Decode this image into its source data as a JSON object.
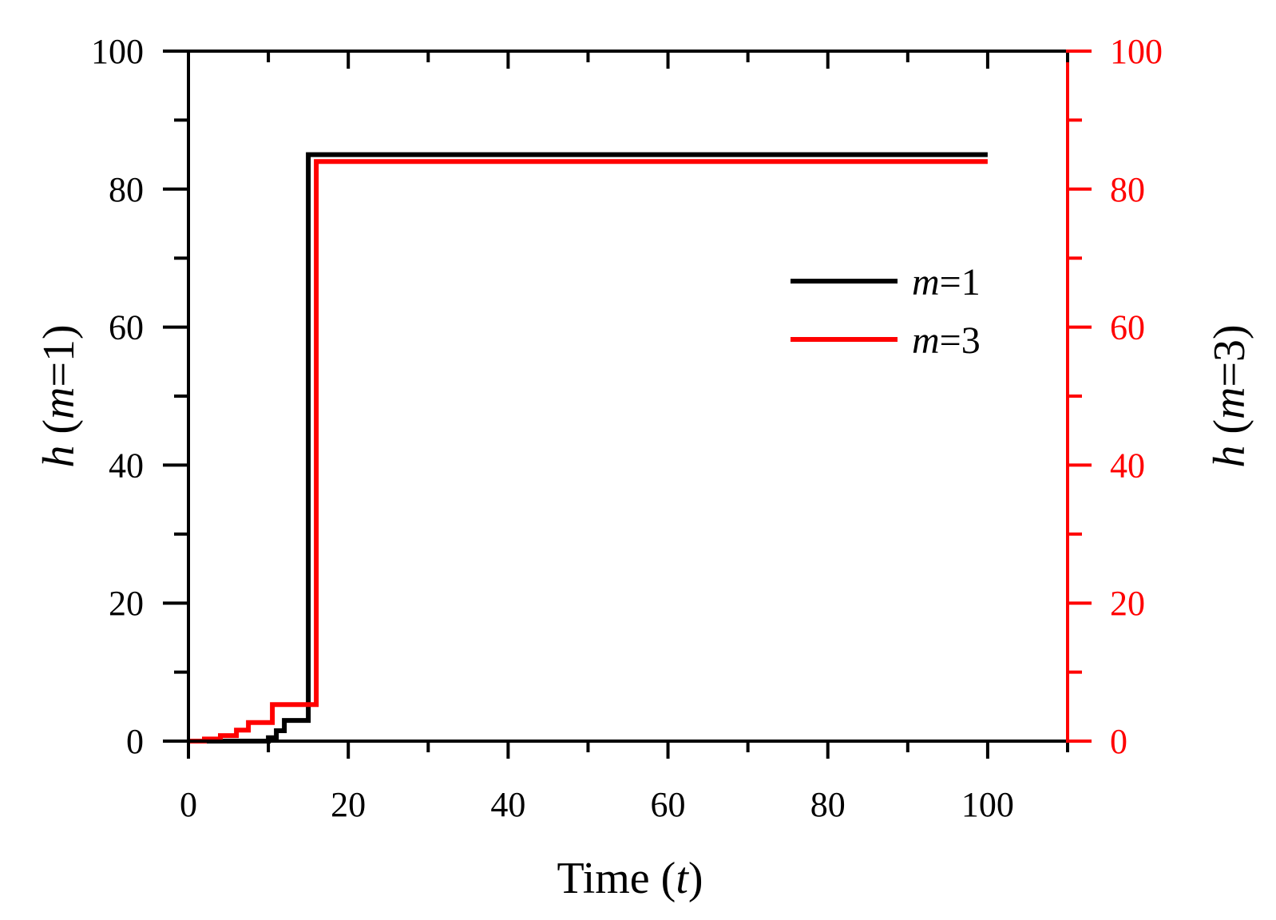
{
  "chart_data": {
    "type": "line",
    "step": true,
    "xlim": [
      0,
      110
    ],
    "ylim": [
      0,
      100
    ],
    "y2lim": [
      0,
      100
    ],
    "x_ticks": [
      "0",
      "20",
      "40",
      "60",
      "80",
      "100"
    ],
    "y_ticks": [
      "0",
      "20",
      "40",
      "60",
      "80",
      "100"
    ],
    "y2_ticks": [
      "0",
      "20",
      "40",
      "60",
      "80",
      "100"
    ],
    "xlabel": {
      "main": "Time (",
      "var": "t",
      "end": ")"
    },
    "ylabel": {
      "pre": "h",
      "mid": " (",
      "var": "m",
      "end": "=1)"
    },
    "y2label": {
      "pre": "h",
      "mid": " (",
      "var": "m",
      "end": "=3)"
    },
    "legend_position": "right-middle",
    "grid": false,
    "colors": {
      "axis": "#000000",
      "secondary_axis": "#ff0000"
    },
    "series": [
      {
        "name": "m=1",
        "legend_var": "m",
        "legend_rest": "=1",
        "axis": "left",
        "color": "#000000",
        "x": [
          0,
          8,
          10,
          10,
          11,
          11,
          12,
          12,
          15,
          15,
          100
        ],
        "y": [
          0,
          0,
          0,
          0.5,
          0.5,
          1.5,
          1.5,
          3,
          3,
          85,
          85
        ]
      },
      {
        "name": "m=3",
        "legend_var": "m",
        "legend_rest": "=3",
        "axis": "right",
        "color": "#ff0000",
        "x": [
          0,
          2,
          2,
          4,
          4,
          6,
          6,
          7.5,
          7.5,
          10.5,
          10.5,
          16,
          16,
          100
        ],
        "y": [
          0,
          0,
          0.3,
          0.3,
          0.8,
          0.8,
          1.6,
          1.6,
          2.7,
          2.7,
          5.3,
          5.3,
          84,
          84
        ]
      }
    ]
  }
}
